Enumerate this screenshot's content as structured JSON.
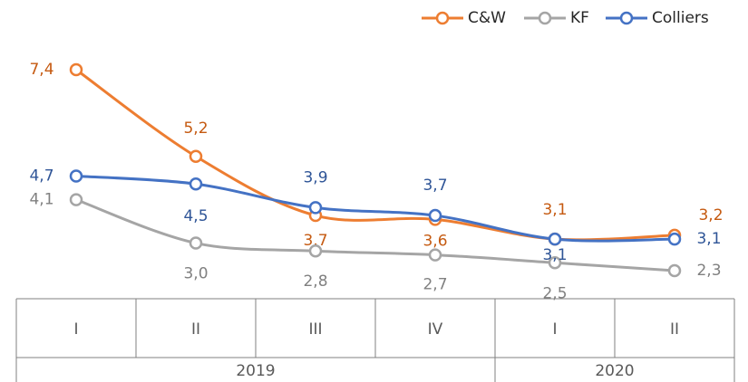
{
  "chart_data": {
    "type": "line",
    "categories": [
      "I",
      "II",
      "III",
      "IV",
      "I",
      "II"
    ],
    "category_groups": [
      {
        "label": "2019",
        "count": 4
      },
      {
        "label": "2020",
        "count": 2
      }
    ],
    "legend": "top-right",
    "series": [
      {
        "name": "C&W",
        "color": "#ed7d31",
        "label_color": "#c55a11",
        "values": [
          7.4,
          5.2,
          3.7,
          3.6,
          3.1,
          3.2
        ],
        "value_labels": [
          "7,4",
          "5,2",
          "3,7",
          "3,6",
          "3,1",
          "3,2"
        ]
      },
      {
        "name": "KF",
        "color": "#a5a5a5",
        "label_color": "#808080",
        "values": [
          4.1,
          3.0,
          2.8,
          2.7,
          2.5,
          2.3
        ],
        "value_labels": [
          "4,1",
          "3,0",
          "2,8",
          "2,7",
          "2,5",
          "2,3"
        ]
      },
      {
        "name": "Colliers",
        "color": "#4472c4",
        "label_color": "#2f5597",
        "values": [
          4.7,
          4.5,
          3.9,
          3.7,
          3.1,
          3.1
        ],
        "value_labels": [
          "4,7",
          "4,5",
          "3,9",
          "3,7",
          "3,1",
          "3,1"
        ]
      }
    ]
  }
}
